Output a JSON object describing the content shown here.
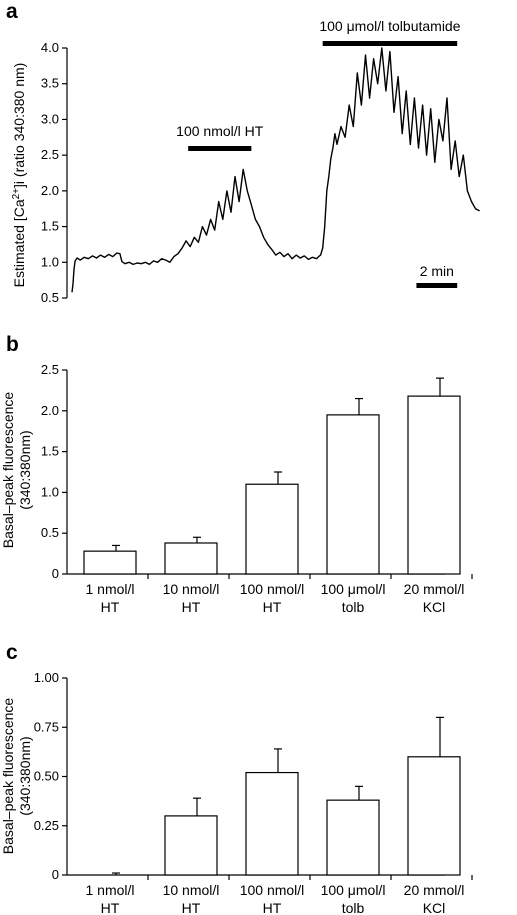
{
  "chart_data": [
    {
      "type": "line",
      "panel_label": "a",
      "ylabel": "Estimated [Ca2+]i (ratio 340:380 nm)",
      "ylabel_parts": {
        "pre": "Estimated [Ca",
        "sup": "2+",
        "post": "]i (ratio 340:380 nm)"
      },
      "yticks": [
        "0.5",
        "1.0",
        "1.5",
        "2.0",
        "2.5",
        "3.0",
        "3.5",
        "4.0"
      ],
      "ylim": [
        0.5,
        4.0
      ],
      "xlim": [
        0,
        21
      ],
      "x_unit": "min",
      "scale_bar": {
        "label": "2 min",
        "length": 2
      },
      "annotations": [
        {
          "text": "100 nmol/l HT",
          "x_start": 5.7,
          "x_end": 8.8
        },
        {
          "text": "100 μmol/l tolbutamide",
          "x_start": 12.3,
          "x_end": 18.9
        }
      ],
      "x": [
        0,
        0.05,
        0.1,
        0.15,
        0.25,
        0.4,
        0.6,
        0.8,
        1.0,
        1.2,
        1.4,
        1.6,
        1.8,
        2.0,
        2.2,
        2.35,
        2.45,
        2.6,
        2.8,
        3.0,
        3.2,
        3.4,
        3.6,
        3.8,
        4.0,
        4.2,
        4.4,
        4.6,
        4.8,
        5.0,
        5.2,
        5.4,
        5.6,
        5.8,
        6.0,
        6.2,
        6.4,
        6.6,
        6.8,
        7.0,
        7.2,
        7.4,
        7.6,
        7.8,
        8.0,
        8.2,
        8.4,
        8.6,
        8.8,
        9.0,
        9.2,
        9.4,
        9.6,
        9.8,
        10.0,
        10.2,
        10.4,
        10.6,
        10.8,
        11.0,
        11.2,
        11.4,
        11.6,
        11.8,
        12.0,
        12.1,
        12.2,
        12.3,
        12.4,
        12.5,
        12.6,
        12.7,
        12.8,
        12.9,
        13.0,
        13.2,
        13.4,
        13.6,
        13.8,
        14.0,
        14.2,
        14.4,
        14.6,
        14.8,
        15.0,
        15.2,
        15.4,
        15.6,
        15.8,
        16.0,
        16.2,
        16.4,
        16.6,
        16.8,
        17.0,
        17.2,
        17.4,
        17.6,
        17.8,
        18.0,
        18.2,
        18.4,
        18.6,
        18.8,
        19.0,
        19.2,
        19.4,
        19.6,
        19.8,
        20.0
      ],
      "y": [
        0.58,
        0.7,
        0.9,
        1.02,
        1.06,
        1.03,
        1.07,
        1.05,
        1.09,
        1.06,
        1.1,
        1.07,
        1.11,
        1.08,
        1.13,
        1.12,
        1.01,
        0.98,
        1.0,
        0.97,
        0.99,
        0.98,
        1.0,
        0.97,
        1.02,
        1.0,
        1.05,
        1.03,
        1.0,
        1.08,
        1.12,
        1.2,
        1.3,
        1.22,
        1.35,
        1.28,
        1.5,
        1.38,
        1.6,
        1.45,
        1.85,
        1.6,
        2.0,
        1.7,
        2.2,
        1.85,
        2.3,
        2.0,
        1.8,
        1.6,
        1.5,
        1.35,
        1.25,
        1.18,
        1.1,
        1.14,
        1.08,
        1.12,
        1.05,
        1.1,
        1.06,
        1.09,
        1.04,
        1.07,
        1.05,
        1.08,
        1.1,
        1.2,
        1.5,
        2.0,
        2.2,
        2.45,
        2.6,
        2.8,
        2.65,
        2.9,
        2.75,
        3.2,
        2.9,
        3.65,
        3.2,
        3.9,
        3.3,
        3.85,
        3.5,
        4.0,
        3.4,
        3.95,
        3.1,
        3.6,
        2.8,
        3.4,
        2.65,
        3.3,
        2.6,
        3.2,
        2.5,
        3.15,
        2.4,
        3.0,
        2.7,
        3.3,
        2.3,
        2.7,
        2.2,
        2.5,
        2.0,
        1.85,
        1.75,
        1.72
      ]
    },
    {
      "type": "bar",
      "panel_label": "b",
      "ylabel": "Basal–peak fluorescence",
      "ylabel2": "(340:380nm)",
      "yticks": [
        "0",
        "0.5",
        "1.0",
        "1.5",
        "2.0",
        "2.5"
      ],
      "ylim": [
        0,
        2.5
      ],
      "categories": [
        {
          "line1": "1 nmol/l",
          "line2": "HT"
        },
        {
          "line1": "10 nmol/l",
          "line2": "HT"
        },
        {
          "line1": "100 nmol/l",
          "line2": "HT"
        },
        {
          "line1": "100 μmol/l",
          "line2": "tolb"
        },
        {
          "line1": "20 mmol/l",
          "line2": "KCl"
        }
      ],
      "values": [
        0.28,
        0.38,
        1.1,
        1.95,
        2.18
      ],
      "errors": [
        0.07,
        0.07,
        0.15,
        0.2,
        0.22
      ]
    },
    {
      "type": "bar",
      "panel_label": "c",
      "ylabel": "Basal–peak fluorescence",
      "ylabel2": "(340:380nm)",
      "yticks": [
        "0",
        "0.25",
        "0.50",
        "0.75",
        "1.00"
      ],
      "ylim": [
        0,
        1.0
      ],
      "categories": [
        {
          "line1": "1 nmol/l",
          "line2": "HT"
        },
        {
          "line1": "10 nmol/l",
          "line2": "HT"
        },
        {
          "line1": "100 nmol/l",
          "line2": "HT"
        },
        {
          "line1": "100 μmol/l",
          "line2": "tolb"
        },
        {
          "line1": "20 mmol/l",
          "line2": "KCl"
        }
      ],
      "values": [
        0.0,
        0.3,
        0.52,
        0.38,
        0.6
      ],
      "errors": [
        0.01,
        0.09,
        0.12,
        0.07,
        0.2
      ]
    }
  ]
}
